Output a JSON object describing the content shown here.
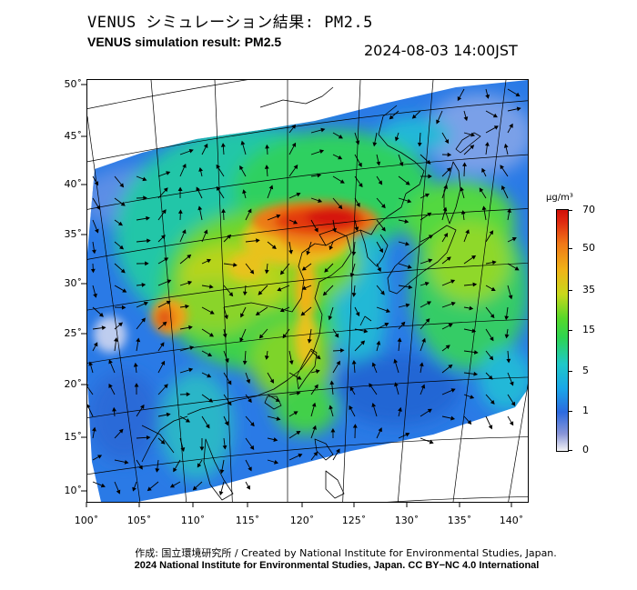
{
  "header": {
    "title_jp": "VENUS シミュレーション結果: PM2.5",
    "title_en": "VENUS simulation result: PM2.5",
    "datetime": "2024-08-03 14:00JST"
  },
  "map": {
    "latitude_labels": [
      "50˚",
      "45˚",
      "40˚",
      "35˚",
      "30˚",
      "25˚",
      "20˚",
      "15˚",
      "10˚"
    ],
    "longitude_labels": [
      "100˚",
      "105˚",
      "110˚",
      "115˚",
      "120˚",
      "125˚",
      "130˚",
      "135˚",
      "140˚"
    ],
    "colors": {
      "land_outline": "#000000",
      "grid": "#000000",
      "vectors": "#000000"
    }
  },
  "colorbar": {
    "unit": "µg/m³",
    "levels": [
      "70",
      "50",
      "35",
      "15",
      "5",
      "1",
      "0"
    ],
    "colors": [
      "#d01008",
      "#f07818",
      "#c8d81c",
      "#2dd452",
      "#1fc8c8",
      "#2c6ae0",
      "#f4f4f6"
    ]
  },
  "footer": {
    "credit_jp": "作成: 国立環境研究所 / Created by National Institute for Environmental Studies, Japan.",
    "credit_en": "2024 National Institute for Environmental Studies, Japan. CC BY−NC 4.0 International"
  }
}
